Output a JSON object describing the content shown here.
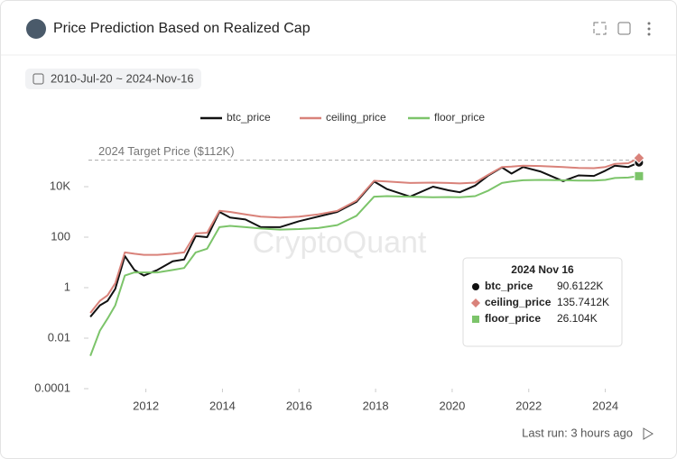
{
  "page": {
    "date_range": "2010-Jul-20 ~ 2024-Nov-16",
    "watermark": "CryptoQuant",
    "footer": "Last run: 3 hours ago"
  },
  "chart_data": {
    "type": "line",
    "title": "Price Prediction Based on Realized Cap",
    "x": [
      2010.55,
      2010.8,
      2011.0,
      2011.2,
      2011.45,
      2011.7,
      2011.95,
      2012.3,
      2012.7,
      2013.0,
      2013.3,
      2013.6,
      2013.92,
      2014.2,
      2014.6,
      2015.0,
      2015.5,
      2016.0,
      2016.5,
      2017.0,
      2017.5,
      2017.96,
      2018.3,
      2018.9,
      2019.5,
      2019.9,
      2020.2,
      2020.6,
      2020.95,
      2021.3,
      2021.55,
      2021.85,
      2022.3,
      2022.9,
      2023.3,
      2023.7,
      2024.0,
      2024.25,
      2024.6,
      2024.88
    ],
    "series": [
      {
        "name": "btc_price",
        "color": "#111111",
        "values": [
          0.07,
          0.2,
          0.3,
          0.9,
          18,
          5,
          3,
          5,
          11,
          13,
          110,
          100,
          1000,
          600,
          500,
          250,
          250,
          430,
          650,
          1000,
          2500,
          16000,
          8000,
          4000,
          10000,
          7200,
          6000,
          11000,
          28000,
          58000,
          33000,
          60000,
          40000,
          16500,
          28000,
          26500,
          43000,
          68000,
          60000,
          90612.2
        ]
      },
      {
        "name": "ceiling_price",
        "color": "#d9827a",
        "values": [
          0.1,
          0.3,
          0.5,
          1.5,
          25,
          22,
          20,
          20,
          22,
          25,
          140,
          150,
          1100,
          1000,
          800,
          650,
          600,
          650,
          800,
          1100,
          2800,
          17000,
          16000,
          14000,
          14500,
          14000,
          13500,
          14500,
          30000,
          60000,
          62000,
          68000,
          66000,
          60000,
          55000,
          54000,
          60000,
          80000,
          85000,
          135741.2
        ]
      },
      {
        "name": "floor_price",
        "color": "#7cc46a",
        "values": [
          0.002,
          0.02,
          0.06,
          0.2,
          3,
          4,
          4,
          4,
          5,
          6,
          25,
          35,
          250,
          280,
          250,
          220,
          200,
          210,
          230,
          300,
          700,
          4000,
          4200,
          4000,
          3800,
          3900,
          3800,
          4200,
          7000,
          14000,
          16000,
          18000,
          18500,
          18000,
          17500,
          17500,
          18500,
          22000,
          23000,
          26104
        ]
      }
    ],
    "xlim": [
      2010.5,
      2025.0
    ],
    "xticks": [
      2012,
      2014,
      2016,
      2018,
      2020,
      2022,
      2024
    ],
    "ylim": [
      0.0001,
      1000000
    ],
    "yticks": [
      0.0001,
      0.01,
      1,
      100,
      {
        "value": 10000,
        "label": "10K"
      }
    ],
    "log_scale": "y",
    "grid": false,
    "annotation": {
      "text": "2024 Target Price ($112K)",
      "value": 112000
    },
    "tooltip": {
      "title": "2024 Nov 16",
      "labels": [
        "90.6122K",
        "135.7412K",
        "26.104K"
      ]
    }
  }
}
